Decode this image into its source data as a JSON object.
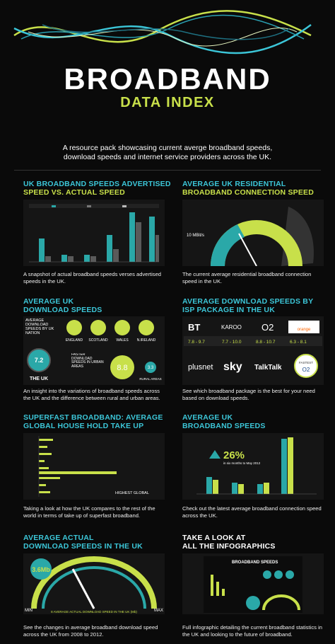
{
  "header": {
    "title": "BROADBAND",
    "subtitle": "DATA INDEX",
    "intro": "A resource pack showcasing current averge broadband speeds, download speeds and internet service providers across the UK."
  },
  "panels": [
    {
      "heading": [
        "UK BROADBAND SPEEDS ADVERTISED",
        "SPEED VS. ACTUAL SPEED"
      ],
      "description": "A snapshot of actual broadband speeds verses advertised speeds in the UK."
    },
    {
      "heading": [
        "AVERAGE UK RESIDENTIAL",
        "BROADBAND CONNECTION SPEED"
      ],
      "description": "The current average residential broadband connection speed in the UK.",
      "labels": [
        "10 MBit/s"
      ]
    },
    {
      "heading": [
        "AVERAGE UK",
        "DOWNLOAD SPEEDS"
      ],
      "description": "An insight into the variations of broadband speeds across the UK and the difference between rural and urban areas.",
      "labels": [
        "AVERAGE DOWNLOAD SPEEDS BY UK NATION",
        "7.2",
        "THE UK",
        "ENGLAND",
        "SCOTLAND",
        "WALES",
        "N.IRELAND",
        "FASTER DOWNLOAD SPEEDS IN URBAN AREAS",
        "8.8",
        "3.3",
        "RURAL AREAS"
      ]
    },
    {
      "heading": [
        "AVERAGE DOWNLOAD SPEEDS BY",
        "ISP PACKAGE IN THE UK"
      ],
      "description": "See which broadband package is the best for your need based on download speeds.",
      "labels": [
        "BT",
        "KAROO",
        "O2",
        "orange",
        "7.8 - 9.7",
        "7.7 - 10.0",
        "8.8 - 10.7",
        "6.3 - 8.1",
        "plusnet",
        "sky",
        "TalkTalk",
        "FASTEST",
        "O2"
      ]
    },
    {
      "heading": [
        "SUPERFAST BROADBAND: AVERAGE",
        "GLOBAL HOUSE HOLD TAKE UP"
      ],
      "description": "Taking a look at  how the UK compares to the rest of the world in terms of take up of superfast broadband.",
      "labels": [
        "HIGHEST GLOBAL"
      ]
    },
    {
      "heading": [
        "AVERAGE UK",
        "BROADBAND SPEEDS"
      ],
      "description": "Check out the latest average broadband connection speed across the UK.",
      "labels": [
        "26%",
        "in six months to May 2012"
      ]
    },
    {
      "heading": [
        "AVERAGE ACTUAL",
        "DOWNLOAD SPEEDS IN THE UK"
      ],
      "description": "See the changes in average broadband download speed across the UK from 2008 to 2012.",
      "labels": [
        "3.6Mb",
        "MIN",
        "MAX",
        "8 AVERAGE ACTUAL DOWNLOAD SPEED IN THE UK (Mb)"
      ]
    },
    {
      "heading": [
        "TAKE A LOOK AT",
        "ALL THE INFOGRAPHICS"
      ],
      "description": "Full infographic detailing the current broadband statistics in the UK and looking to the future of broadband.",
      "labels": [
        "BROADBAND SPEEDS"
      ]
    }
  ]
}
